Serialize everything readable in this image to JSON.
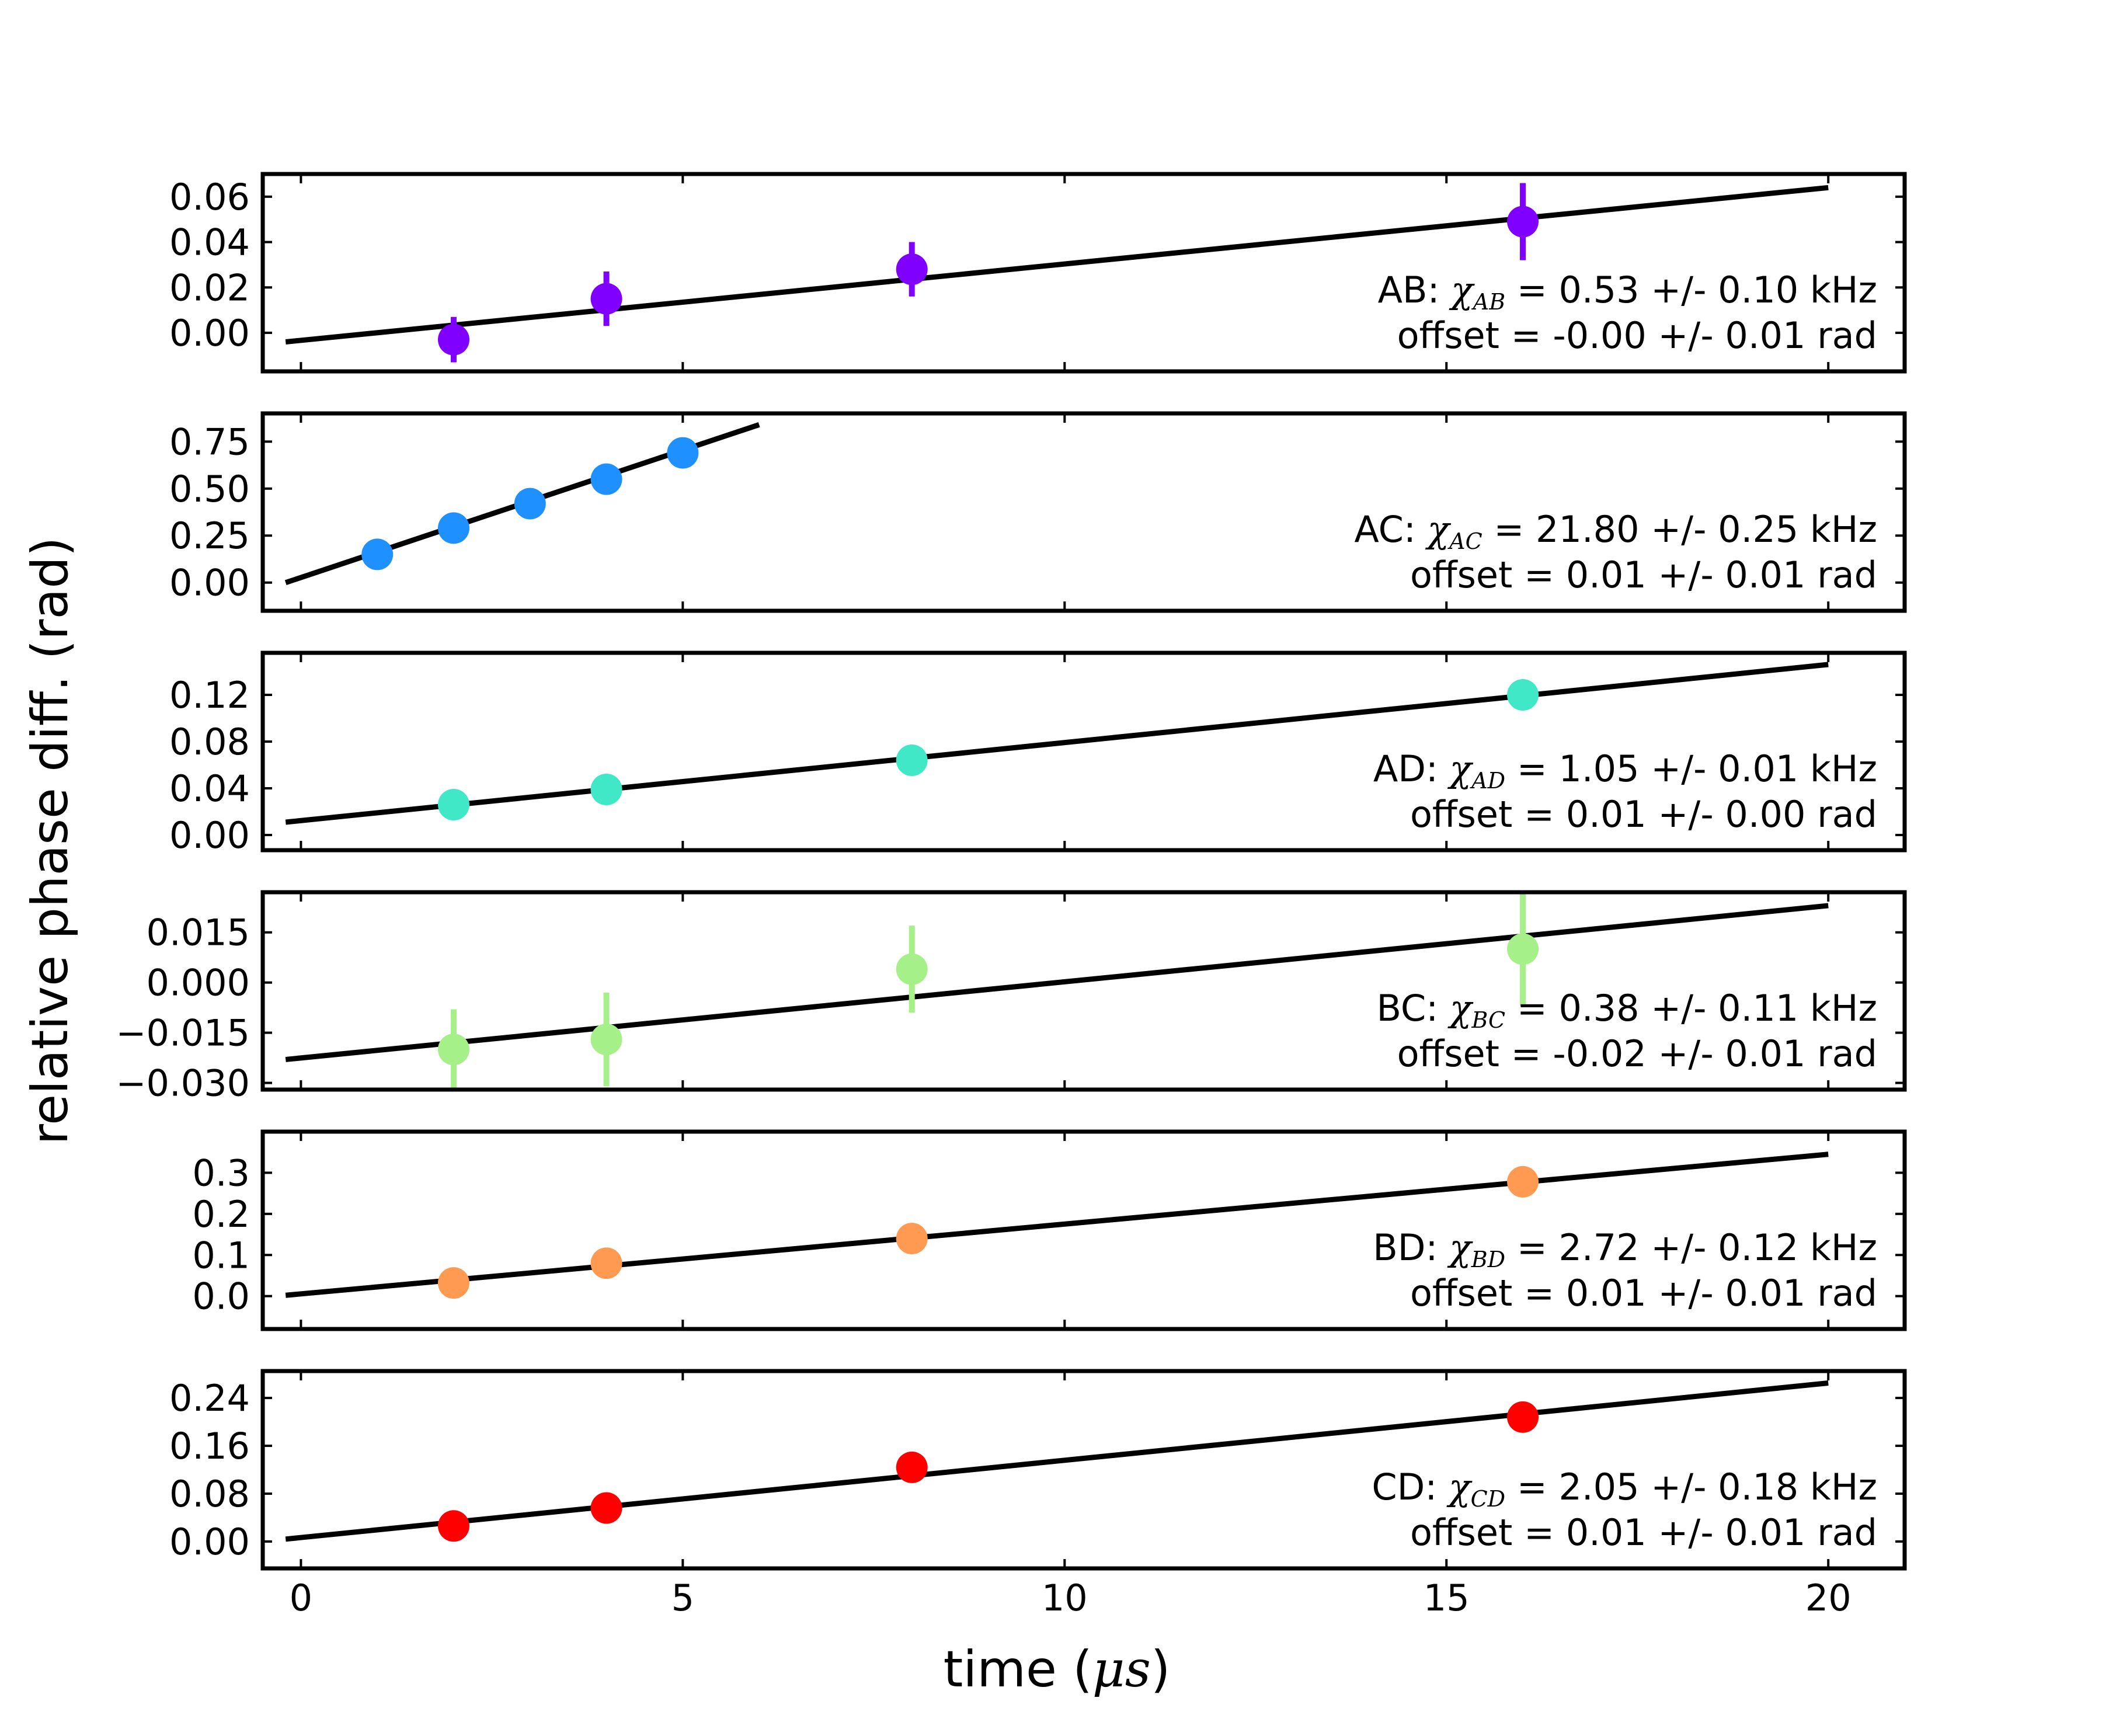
{
  "chart_data": {
    "type": "scatter",
    "xlabel_prefix": "time (",
    "xlabel_unit": "μs",
    "xlabel_suffix": ")",
    "ylabel": "relative phase diff. (rad)",
    "xlim": [
      -0.5,
      21
    ],
    "xticks": [
      0,
      5,
      10,
      15,
      20
    ],
    "subplots": [
      {
        "pair": "AB",
        "color": "#7f00ff",
        "ylim": [
          -0.017,
          0.07
        ],
        "yticks": [
          0.0,
          0.02,
          0.04,
          0.06
        ],
        "ytick_labels": [
          "0.00",
          "0.02",
          "0.04",
          "0.06"
        ],
        "points": [
          {
            "x": 2,
            "y": -0.003,
            "err": 0.01
          },
          {
            "x": 4,
            "y": 0.015,
            "err": 0.012
          },
          {
            "x": 8,
            "y": 0.028,
            "err": 0.012
          },
          {
            "x": 16,
            "y": 0.049,
            "err": 0.017
          }
        ],
        "fit": {
          "x0": -0.2,
          "y0": -0.004,
          "x1": 20,
          "y1": 0.064
        },
        "label_line1_prefix": "AB: ",
        "chi_symbol": "χ",
        "chi_sub": "AB",
        "label_line1_value": " = 0.53 +/- 0.10 kHz",
        "label_line2": "offset = -0.00 +/- 0.01 rad"
      },
      {
        "pair": "AC",
        "color": "#1e90ff",
        "ylim": [
          -0.15,
          0.9
        ],
        "yticks": [
          0.0,
          0.25,
          0.5,
          0.75
        ],
        "ytick_labels": [
          "0.00",
          "0.25",
          "0.50",
          "0.75"
        ],
        "points": [
          {
            "x": 1,
            "y": 0.15,
            "err": 0
          },
          {
            "x": 2,
            "y": 0.29,
            "err": 0
          },
          {
            "x": 3,
            "y": 0.42,
            "err": 0
          },
          {
            "x": 4,
            "y": 0.55,
            "err": 0
          },
          {
            "x": 5,
            "y": 0.69,
            "err": 0
          }
        ],
        "fit": {
          "x0": -0.2,
          "y0": 0.0,
          "x1": 6,
          "y1": 0.84
        },
        "label_line1_prefix": "AC: ",
        "chi_symbol": "χ",
        "chi_sub": "AC",
        "label_line1_value": " = 21.80 +/- 0.25 kHz",
        "label_line2": "offset = 0.01 +/- 0.01 rad"
      },
      {
        "pair": "AD",
        "color": "#40e8c8",
        "ylim": [
          -0.013,
          0.156
        ],
        "yticks": [
          0.0,
          0.04,
          0.08,
          0.12
        ],
        "ytick_labels": [
          "0.00",
          "0.04",
          "0.08",
          "0.12"
        ],
        "points": [
          {
            "x": 2,
            "y": 0.026,
            "err": 0
          },
          {
            "x": 4,
            "y": 0.039,
            "err": 0
          },
          {
            "x": 8,
            "y": 0.064,
            "err": 0
          },
          {
            "x": 16,
            "y": 0.12,
            "err": 0.01
          }
        ],
        "fit": {
          "x0": -0.2,
          "y0": 0.011,
          "x1": 20,
          "y1": 0.146
        },
        "label_line1_prefix": "AD: ",
        "chi_symbol": "χ",
        "chi_sub": "AD",
        "label_line1_value": " = 1.05 +/- 0.01 kHz",
        "label_line2": "offset = 0.01 +/- 0.00 rad"
      },
      {
        "pair": "BC",
        "color": "#a6f08a",
        "ylim": [
          -0.032,
          0.027
        ],
        "yticks": [
          -0.03,
          -0.015,
          0.0,
          0.015
        ],
        "ytick_labels": [
          "−0.030",
          "−0.015",
          "0.000",
          "0.015"
        ],
        "points": [
          {
            "x": 2,
            "y": -0.02,
            "err": 0.012
          },
          {
            "x": 4,
            "y": -0.017,
            "err": 0.014
          },
          {
            "x": 8,
            "y": 0.004,
            "err": 0.013
          },
          {
            "x": 16,
            "y": 0.01,
            "err": 0.017
          }
        ],
        "fit": {
          "x0": -0.2,
          "y0": -0.023,
          "x1": 20,
          "y1": 0.023
        },
        "label_line1_prefix": "BC: ",
        "chi_symbol": "χ",
        "chi_sub": "BC",
        "label_line1_value": " = 0.38 +/- 0.11 kHz",
        "label_line2": "offset = -0.02 +/- 0.01 rad"
      },
      {
        "pair": "BD",
        "color": "#ff9a52",
        "ylim": [
          -0.08,
          0.4
        ],
        "yticks": [
          0.0,
          0.1,
          0.2,
          0.3
        ],
        "ytick_labels": [
          "0.0",
          "0.1",
          "0.2",
          "0.3"
        ],
        "points": [
          {
            "x": 2,
            "y": 0.032,
            "err": 0
          },
          {
            "x": 4,
            "y": 0.08,
            "err": 0
          },
          {
            "x": 8,
            "y": 0.14,
            "err": 0
          },
          {
            "x": 16,
            "y": 0.278,
            "err": 0
          }
        ],
        "fit": {
          "x0": -0.2,
          "y0": 0.002,
          "x1": 20,
          "y1": 0.345
        },
        "label_line1_prefix": "BD: ",
        "chi_symbol": "χ",
        "chi_sub": "BD",
        "label_line1_value": " = 2.72 +/- 0.12 kHz",
        "label_line2": "offset = 0.01 +/- 0.01 rad"
      },
      {
        "pair": "CD",
        "color": "#ff0000",
        "ylim": [
          -0.045,
          0.285
        ],
        "yticks": [
          0.0,
          0.08,
          0.16,
          0.24
        ],
        "ytick_labels": [
          "0.00",
          "0.08",
          "0.16",
          "0.24"
        ],
        "points": [
          {
            "x": 2,
            "y": 0.026,
            "err": 0
          },
          {
            "x": 4,
            "y": 0.056,
            "err": 0
          },
          {
            "x": 8,
            "y": 0.124,
            "err": 0
          },
          {
            "x": 16,
            "y": 0.208,
            "err": 0
          }
        ],
        "fit": {
          "x0": -0.2,
          "y0": 0.004,
          "x1": 20,
          "y1": 0.265
        },
        "label_line1_prefix": "CD: ",
        "chi_symbol": "χ",
        "chi_sub": "CD",
        "label_line1_value": " = 2.05 +/- 0.18 kHz",
        "label_line2": "offset = 0.01 +/- 0.01 rad"
      }
    ]
  }
}
